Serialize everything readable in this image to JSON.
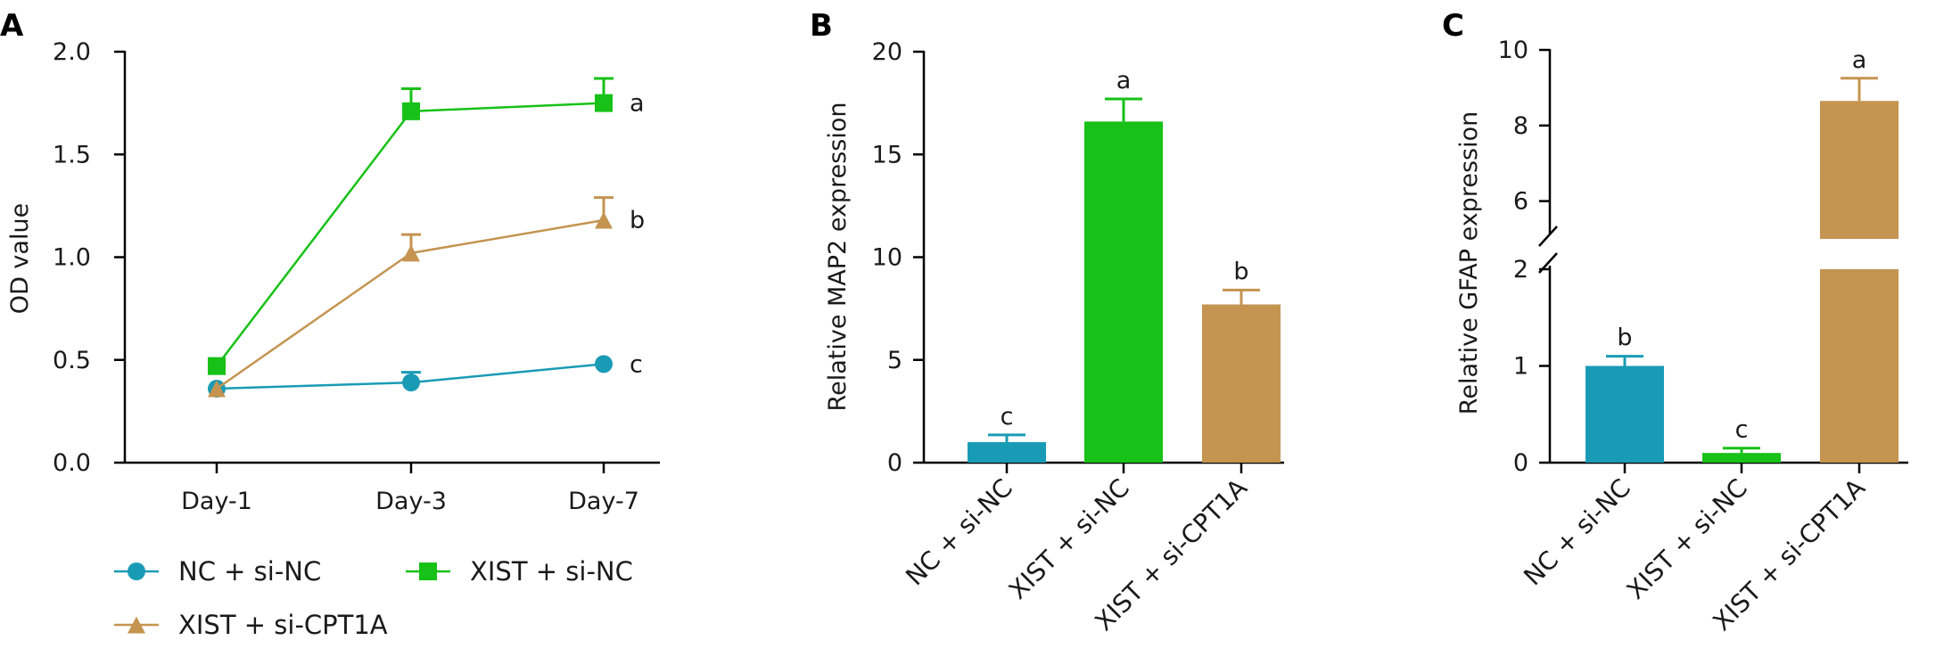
{
  "colors": {
    "nc_si_nc": "#1a9bb5",
    "xist_si_nc": "#17c117",
    "xist_si_cpt1a": "#c49450"
  },
  "chart_data": [
    {
      "panel": "A",
      "type": "line",
      "ylabel": "OD value",
      "xlabel": "",
      "categories": [
        "Day-1",
        "Day-3",
        "Day-7"
      ],
      "ylim": [
        0,
        2.0
      ],
      "yticks": [
        "0.0",
        "0.5",
        "1.0",
        "1.5",
        "2.0"
      ],
      "series": [
        {
          "name": "NC + si-NC",
          "color": "#1a9bb5",
          "marker": "circle",
          "values": [
            0.36,
            0.39,
            0.48
          ],
          "errors": [
            0.03,
            0.05,
            0.02
          ],
          "letter": "c"
        },
        {
          "name": "XIST + si-NC",
          "color": "#17c117",
          "marker": "square",
          "values": [
            0.47,
            1.71,
            1.75
          ],
          "errors": [
            0.02,
            0.11,
            0.12
          ],
          "letter": "a"
        },
        {
          "name": "XIST + si-CPT1A",
          "color": "#c49450",
          "marker": "triangle",
          "values": [
            0.36,
            1.02,
            1.18
          ],
          "errors": [
            0.03,
            0.09,
            0.11
          ],
          "letter": "b"
        }
      ],
      "legend": [
        "NC + si-NC",
        "XIST + si-NC",
        "XIST + si-CPT1A"
      ],
      "legend_placement": "bottom"
    },
    {
      "panel": "B",
      "type": "bar",
      "ylabel": "Relative MAP2 expression",
      "categories": [
        "NC + si-NC",
        "XIST + si-NC",
        "XIST + si-CPT1A"
      ],
      "values": [
        1.0,
        16.6,
        7.7
      ],
      "errors": [
        0.35,
        1.1,
        0.7
      ],
      "letters": [
        "c",
        "a",
        "b"
      ],
      "colors": [
        "#1a9bb5",
        "#17c117",
        "#c49450"
      ],
      "ylim": [
        0,
        20
      ],
      "yticks": [
        "0",
        "5",
        "10",
        "15",
        "20"
      ]
    },
    {
      "panel": "C",
      "type": "bar",
      "ylabel": "Relative GFAP expression",
      "categories": [
        "NC + si-NC",
        "XIST + si-NC",
        "XIST + si-CPT1A"
      ],
      "values": [
        1.0,
        0.1,
        8.65
      ],
      "errors": [
        0.1,
        0.05,
        0.6
      ],
      "letters": [
        "b",
        "c",
        "a"
      ],
      "colors": [
        "#1a9bb5",
        "#17c117",
        "#c49450"
      ],
      "ylim": [
        0,
        10
      ],
      "axis_break": [
        2,
        5
      ],
      "yticks_lower": [
        "0",
        "1",
        "2"
      ],
      "yticks_upper": [
        "6",
        "8",
        "10"
      ]
    }
  ]
}
